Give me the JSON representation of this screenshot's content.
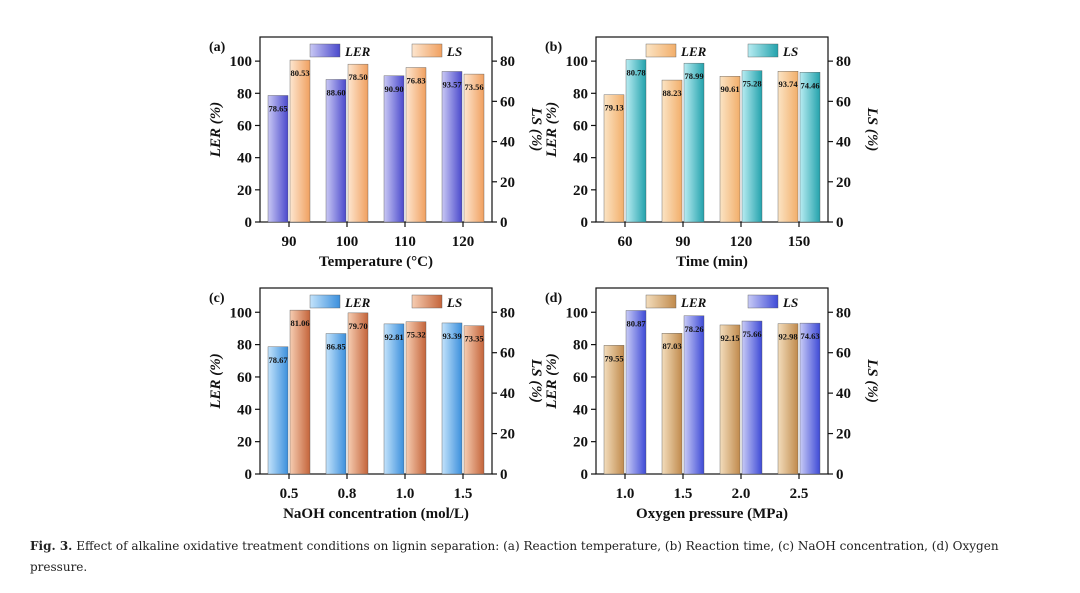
{
  "chart_data": [
    {
      "type": "bar",
      "panel_label": "(a)",
      "xlabel": "Temperature (°C)",
      "ylabel_left": "LER (%)",
      "ylabel_right": "LS (%)",
      "categories": [
        "90",
        "100",
        "110",
        "120"
      ],
      "ylim_left": [
        0,
        115
      ],
      "yticks_left": [
        "0",
        "20",
        "40",
        "60",
        "80",
        "100"
      ],
      "ylim_right": [
        0,
        92
      ],
      "yticks_right": [
        "0",
        "20",
        "40",
        "60",
        "80"
      ],
      "legend": [
        "LER",
        "LS"
      ],
      "series": [
        {
          "name": "LER",
          "axis": "left",
          "values": [
            78.65,
            88.6,
            90.9,
            93.57
          ],
          "labels": [
            "78.65",
            "88.60",
            "90.90",
            "93.57"
          ]
        },
        {
          "name": "LS",
          "axis": "right",
          "values": [
            80.53,
            78.5,
            76.83,
            73.56
          ],
          "labels": [
            "80.53",
            "78.50",
            "76.83",
            "73.56"
          ]
        }
      ],
      "colors": {
        "LER": [
          "#c9c8f4",
          "#4a49cc"
        ],
        "LS": [
          "#fde6cf",
          "#f0a060"
        ]
      }
    },
    {
      "type": "bar",
      "panel_label": "(b)",
      "xlabel": "Time (min)",
      "ylabel_left": "LER (%)",
      "ylabel_right": "LS (%)",
      "categories": [
        "60",
        "90",
        "120",
        "150"
      ],
      "ylim_left": [
        0,
        115
      ],
      "yticks_left": [
        "0",
        "20",
        "40",
        "60",
        "80",
        "100"
      ],
      "ylim_right": [
        0,
        92
      ],
      "yticks_right": [
        "0",
        "20",
        "40",
        "60",
        "80"
      ],
      "legend": [
        "LER",
        "LS"
      ],
      "series": [
        {
          "name": "LER",
          "axis": "left",
          "values": [
            79.13,
            88.23,
            90.61,
            93.74
          ],
          "labels": [
            "79.13",
            "88.23",
            "90.61",
            "93.74"
          ]
        },
        {
          "name": "LS",
          "axis": "right",
          "values": [
            80.78,
            78.99,
            75.28,
            74.46
          ],
          "labels": [
            "80.78",
            "78.99",
            "75.28",
            "74.46"
          ]
        }
      ],
      "colors": {
        "LER": [
          "#fbe4c4",
          "#f2ae6a"
        ],
        "LS": [
          "#b8ecf2",
          "#23a2ac"
        ]
      }
    },
    {
      "type": "bar",
      "panel_label": "(c)",
      "xlabel": "NaOH concentration (mol/L)",
      "ylabel_left": "LER (%)",
      "ylabel_right": "LS (%)",
      "categories": [
        "0.5",
        "0.8",
        "1.0",
        "1.5"
      ],
      "ylim_left": [
        0,
        115
      ],
      "yticks_left": [
        "0",
        "20",
        "40",
        "60",
        "80",
        "100"
      ],
      "ylim_right": [
        0,
        92
      ],
      "yticks_right": [
        "0",
        "20",
        "40",
        "60",
        "80"
      ],
      "legend": [
        "LER",
        "LS"
      ],
      "series": [
        {
          "name": "LER",
          "axis": "left",
          "values": [
            78.67,
            86.85,
            92.81,
            93.39
          ],
          "labels": [
            "78.67",
            "86.85",
            "92.81",
            "93.39"
          ]
        },
        {
          "name": "LS",
          "axis": "right",
          "values": [
            81.06,
            79.7,
            75.32,
            73.35
          ],
          "labels": [
            "81.06",
            "79.70",
            "75.32",
            "73.35"
          ]
        }
      ],
      "colors": {
        "LER": [
          "#c3e3fb",
          "#3b8fdc"
        ],
        "LS": [
          "#f6cdb2",
          "#c4643a"
        ]
      }
    },
    {
      "type": "bar",
      "panel_label": "(d)",
      "xlabel": "Oxygen pressure (MPa)",
      "ylabel_left": "LER (%)",
      "ylabel_right": "LS (%)",
      "categories": [
        "1.0",
        "1.5",
        "2.0",
        "2.5"
      ],
      "ylim_left": [
        0,
        115
      ],
      "yticks_left": [
        "0",
        "20",
        "40",
        "60",
        "80",
        "100"
      ],
      "ylim_right": [
        0,
        92
      ],
      "yticks_right": [
        "0",
        "20",
        "40",
        "60",
        "80"
      ],
      "legend": [
        "LER",
        "LS"
      ],
      "series": [
        {
          "name": "LER",
          "axis": "left",
          "values": [
            79.55,
            87.03,
            92.15,
            92.98
          ],
          "labels": [
            "79.55",
            "87.03",
            "92.15",
            "92.98"
          ]
        },
        {
          "name": "LS",
          "axis": "right",
          "values": [
            80.87,
            78.26,
            75.66,
            74.63
          ],
          "labels": [
            "80.87",
            "78.26",
            "75.66",
            "74.63"
          ]
        }
      ],
      "colors": {
        "LER": [
          "#f3ddbc",
          "#c08a4c"
        ],
        "LS": [
          "#c8cbf6",
          "#3e4ad6"
        ]
      }
    }
  ],
  "caption": {
    "fig_label": "Fig. 3.",
    "text": "Effect of alkaline oxidative treatment conditions on lignin separation: (a) Reaction temperature, (b) Reaction time, (c) NaOH concentration, (d) Oxygen pressure."
  }
}
